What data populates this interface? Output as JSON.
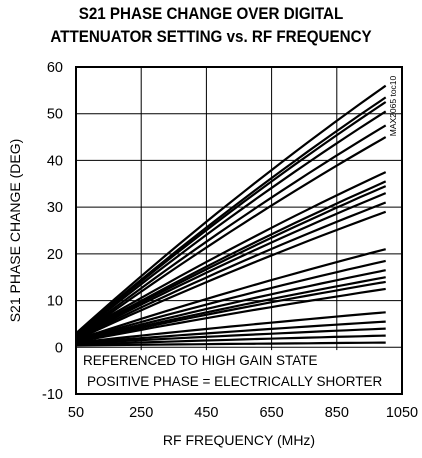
{
  "chart_data": {
    "type": "line",
    "title_line1": "S21 PHASE CHANGE OVER DIGITAL",
    "title_line2": "ATTENUATOR SETTING vs. RF FREQUENCY",
    "xlabel": "RF FREQUENCY (MHz)",
    "ylabel": "S21 PHASE CHANGE (DEG)",
    "xlim": [
      50,
      1050
    ],
    "ylim": [
      -10,
      60
    ],
    "xticks": [
      "50",
      "250",
      "450",
      "650",
      "850",
      "1050"
    ],
    "yticks": [
      "60",
      "50",
      "40",
      "30",
      "20",
      "10",
      "0",
      "-10"
    ],
    "grid": true,
    "annotations": [
      "REFERENCED TO HIGH GAIN STATE",
      "POSITIVE PHASE = ELECTRICALLY SHORTER"
    ],
    "watermark": "MAX2065 toc10",
    "series": [
      {
        "x": [
          50,
          1000
        ],
        "y": [
          3.0,
          56.0
        ]
      },
      {
        "x": [
          50,
          1000
        ],
        "y": [
          2.8,
          53.5
        ]
      },
      {
        "x": [
          50,
          1000
        ],
        "y": [
          2.6,
          52.5
        ]
      },
      {
        "x": [
          50,
          1000
        ],
        "y": [
          2.4,
          50.5
        ]
      },
      {
        "x": [
          50,
          1000
        ],
        "y": [
          2.2,
          47.5
        ]
      },
      {
        "x": [
          50,
          1000
        ],
        "y": [
          2.0,
          45.0
        ]
      },
      {
        "x": [
          50,
          1000
        ],
        "y": [
          2.5,
          37.5
        ]
      },
      {
        "x": [
          50,
          1000
        ],
        "y": [
          2.3,
          35.5
        ]
      },
      {
        "x": [
          50,
          1000
        ],
        "y": [
          2.1,
          34.5
        ]
      },
      {
        "x": [
          50,
          1000
        ],
        "y": [
          2.0,
          33.0
        ]
      },
      {
        "x": [
          50,
          1000
        ],
        "y": [
          1.8,
          31.0
        ]
      },
      {
        "x": [
          50,
          1000
        ],
        "y": [
          1.6,
          29.0
        ]
      },
      {
        "x": [
          50,
          1000
        ],
        "y": [
          1.6,
          21.0
        ]
      },
      {
        "x": [
          50,
          1000
        ],
        "y": [
          1.5,
          18.5
        ]
      },
      {
        "x": [
          50,
          1000
        ],
        "y": [
          1.4,
          16.5
        ]
      },
      {
        "x": [
          50,
          1000
        ],
        "y": [
          1.3,
          15.0
        ]
      },
      {
        "x": [
          50,
          1000
        ],
        "y": [
          1.2,
          14.0
        ]
      },
      {
        "x": [
          50,
          1000
        ],
        "y": [
          1.1,
          12.5
        ]
      },
      {
        "x": [
          50,
          1000
        ],
        "y": [
          1.0,
          7.5
        ]
      },
      {
        "x": [
          50,
          1000
        ],
        "y": [
          0.9,
          5.5
        ]
      },
      {
        "x": [
          50,
          1000
        ],
        "y": [
          0.8,
          4.0
        ]
      },
      {
        "x": [
          50,
          1000
        ],
        "y": [
          0.6,
          2.5
        ]
      },
      {
        "x": [
          50,
          1000
        ],
        "y": [
          0.4,
          1.0
        ]
      }
    ]
  }
}
